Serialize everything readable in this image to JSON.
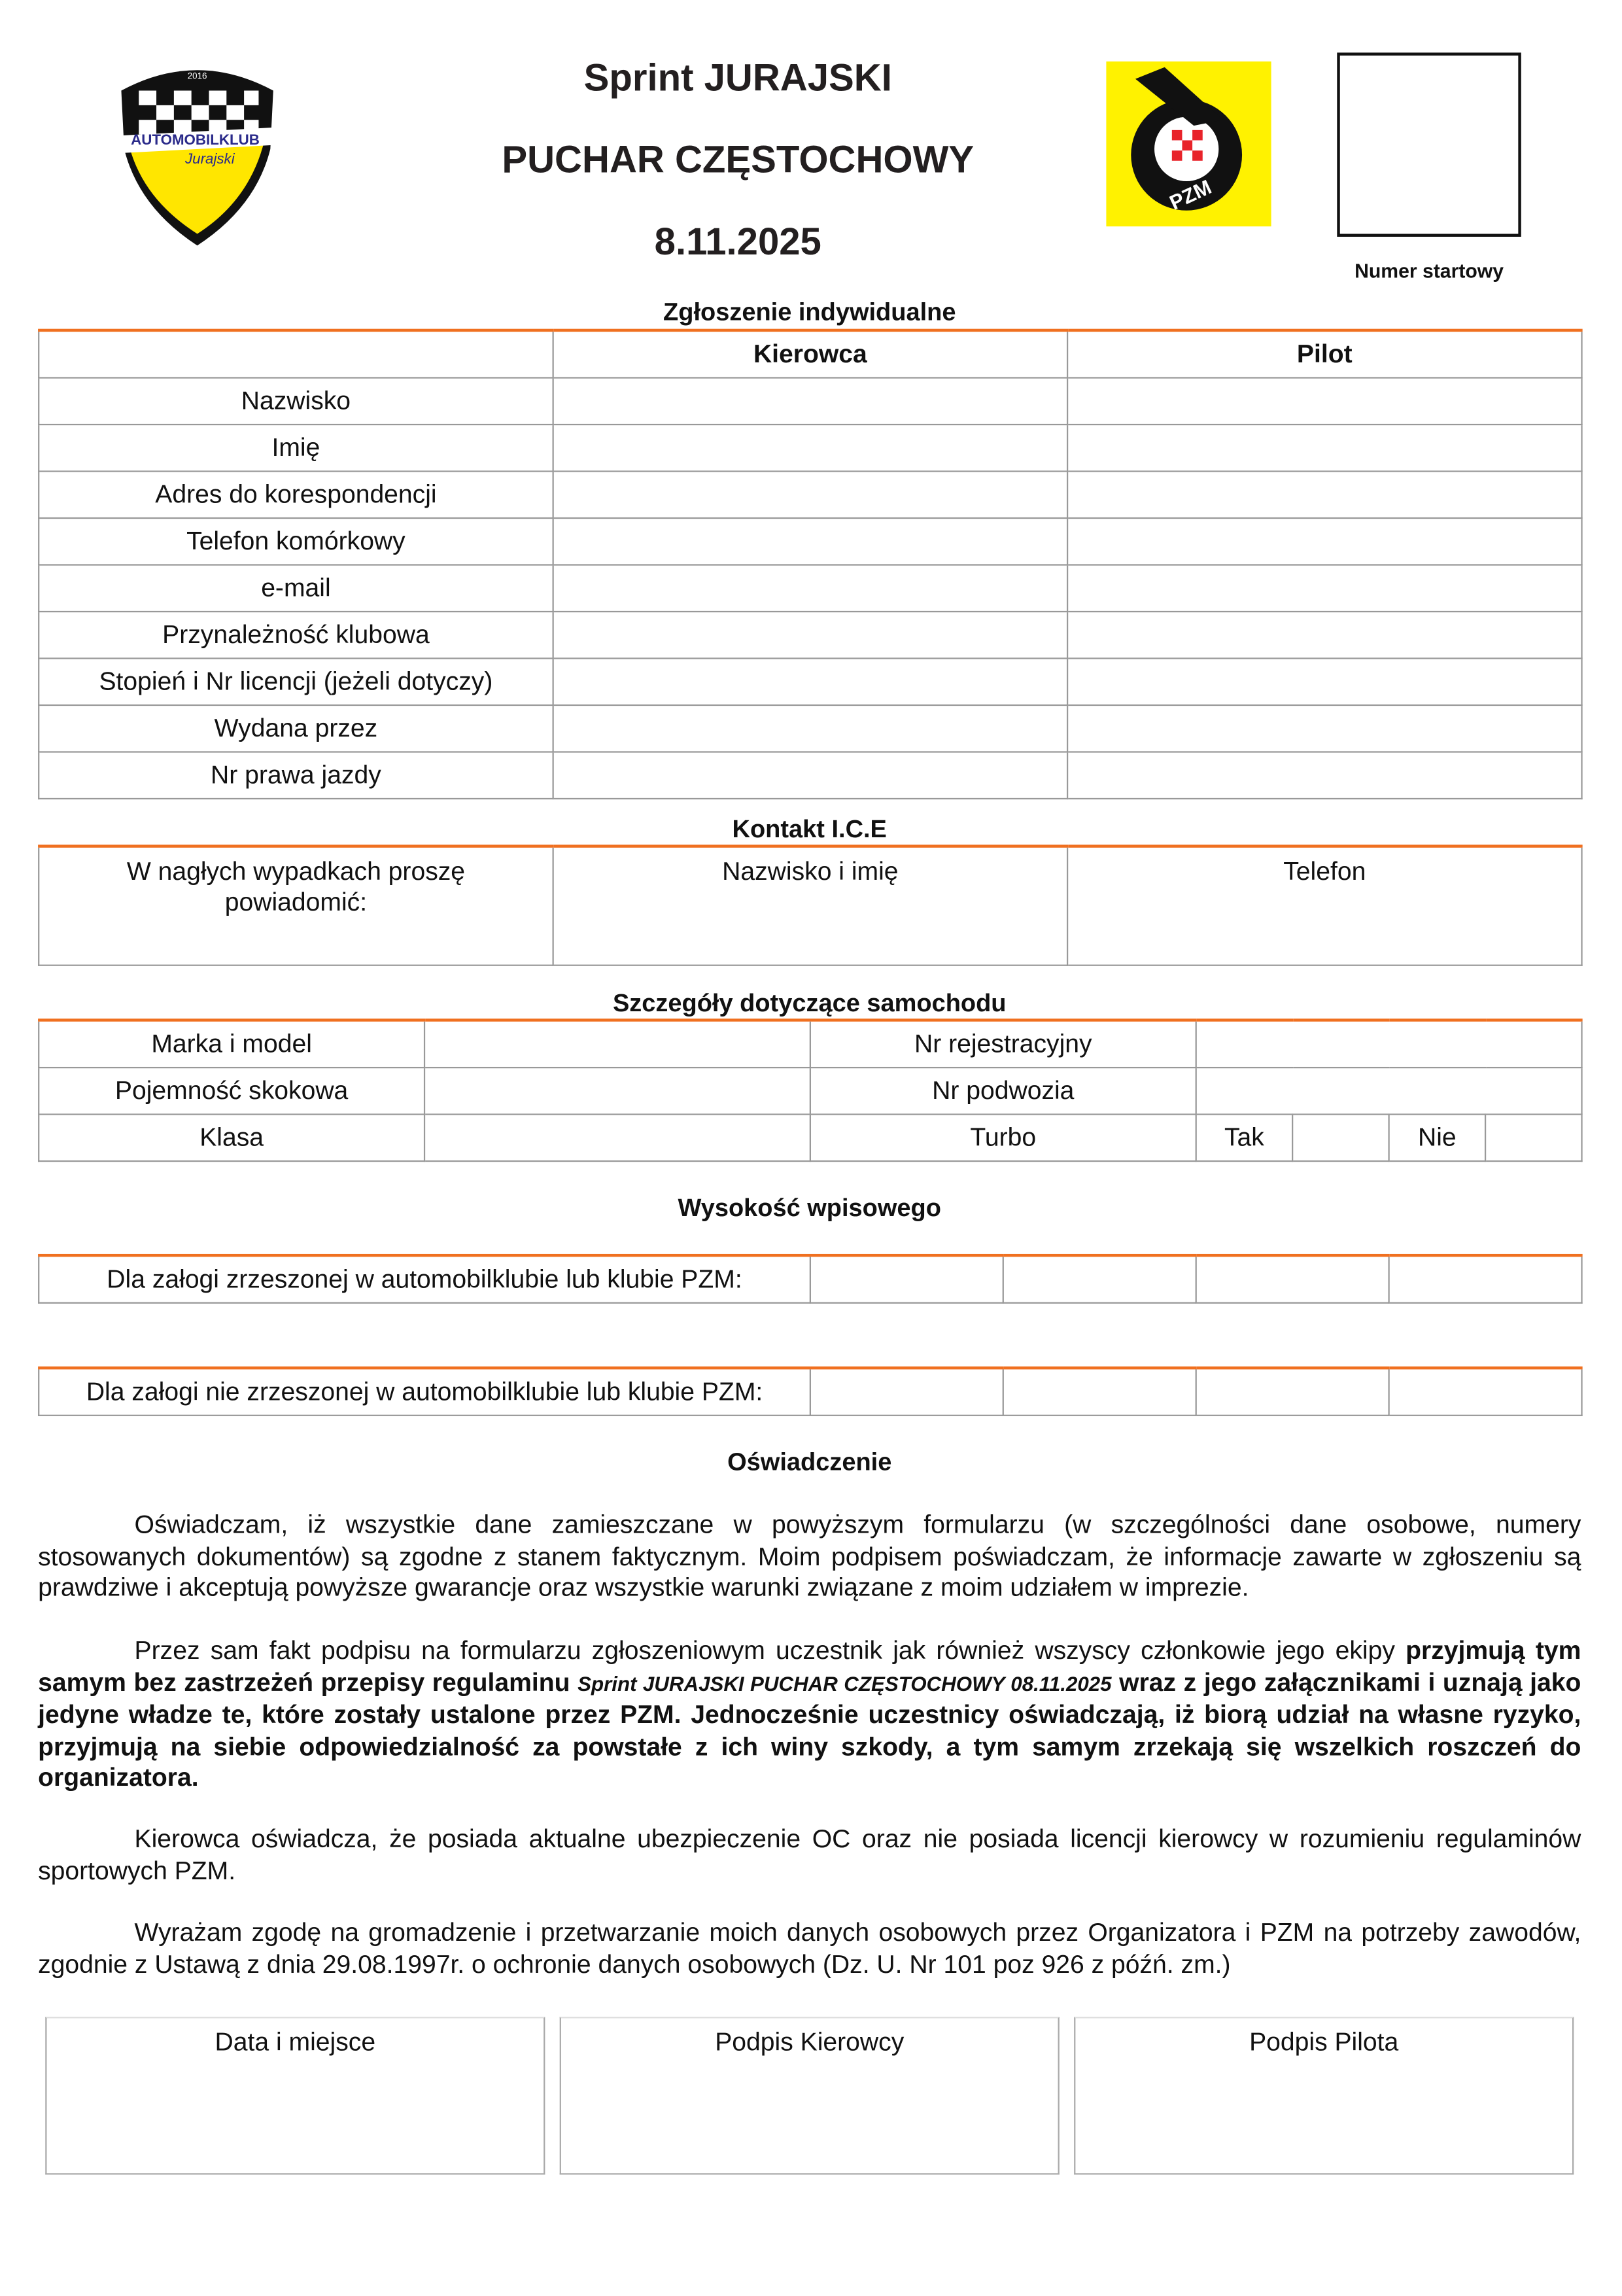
{
  "header": {
    "title_line1": "Sprint JURAJSKI",
    "title_line2": "PUCHAR CZĘSTOCHOWY",
    "date": "8.11.2025",
    "club_logo_text": "AUTOMOBILKLUB Jurajski 2016",
    "pzm_logo_text": "PZM",
    "start_number_label": "Numer startowy"
  },
  "colors": {
    "accent": "#f07020",
    "logo_yellow": "#fff200"
  },
  "entry": {
    "heading": "Zgłoszenie indywidualne",
    "columns": [
      "",
      "Kierowca",
      "Pilot"
    ],
    "rows": [
      "Nazwisko",
      "Imię",
      "Adres do korespondencji",
      "Telefon komórkowy",
      "e-mail",
      "Przynależność klubowa",
      "Stopień i Nr licencji (jeżeli dotyczy)",
      "Wydana przez",
      "Nr prawa jazdy"
    ]
  },
  "ice": {
    "heading": "Kontakt I.C.E",
    "notify": "W nagłych wypadkach proszę powiadomić:",
    "name": "Nazwisko i imię",
    "phone": "Telefon"
  },
  "car": {
    "heading": "Szczegóły dotyczące samochodu",
    "make": "Marka i model",
    "reg": "Nr rejestracyjny",
    "capacity": "Pojemność skokowa",
    "chassis": "Nr podwozia",
    "class": "Klasa",
    "turbo": "Turbo",
    "yes": "Tak",
    "no": "Nie"
  },
  "fee": {
    "heading": "Wysokość wpisowego",
    "member": "Dla załogi zrzeszonej w automobilklubie lub klubie PZM:",
    "nonmember": "Dla załogi nie zrzeszonej w automobilklubie lub klubie PZM:"
  },
  "declaration": {
    "heading": "Oświadczenie",
    "p1": "Oświadczam, iż wszystkie dane zamieszczane w powyższym formularzu (w szczególności dane osobowe, numery stosowanych dokumentów) są zgodne z stanem faktycznym. Moim podpisem poświadczam, że informacje zawarte w zgłoszeniu są prawdziwe i akceptują powyższe gwarancje oraz wszystkie warunki związane z moim udziałem w imprezie.",
    "p2a": "Przez sam fakt podpisu na formularzu zgłoszeniowym uczestnik jak również wszyscy członkowie jego ekipy ",
    "p2b": "przyjmują tym samym bez zastrzeżeń przepisy regulaminu ",
    "p2c": "Sprint JURAJSKI PUCHAR CZĘSTOCHOWY 08.11.2025",
    "p2d": " wraz z jego załącznikami i uznają jako jedyne władze te, które zostały ustalone przez PZM. Jednocześnie uczestnicy oświadczają, iż biorą udział na własne ryzyko, przyjmują na siebie odpowiedzialność za powstałe z ich winy szkody, a tym samym zrzekają się wszelkich roszczeń do organizatora.",
    "p3": "Kierowca oświadcza, że posiada aktualne ubezpieczenie OC oraz nie posiada licencji kierowcy w rozumieniu regulaminów sportowych PZM.",
    "p4": "Wyrażam zgodę na gromadzenie i przetwarzanie moich danych osobowych przez Organizatora i PZM na potrzeby zawodów, zgodnie z Ustawą z dnia 29.08.1997r. o ochronie danych osobowych (Dz. U. Nr 101 poz 926 z późń. zm.)"
  },
  "signatures": [
    "Data i miejsce",
    "Podpis Kierowcy",
    "Podpis Pilota"
  ]
}
